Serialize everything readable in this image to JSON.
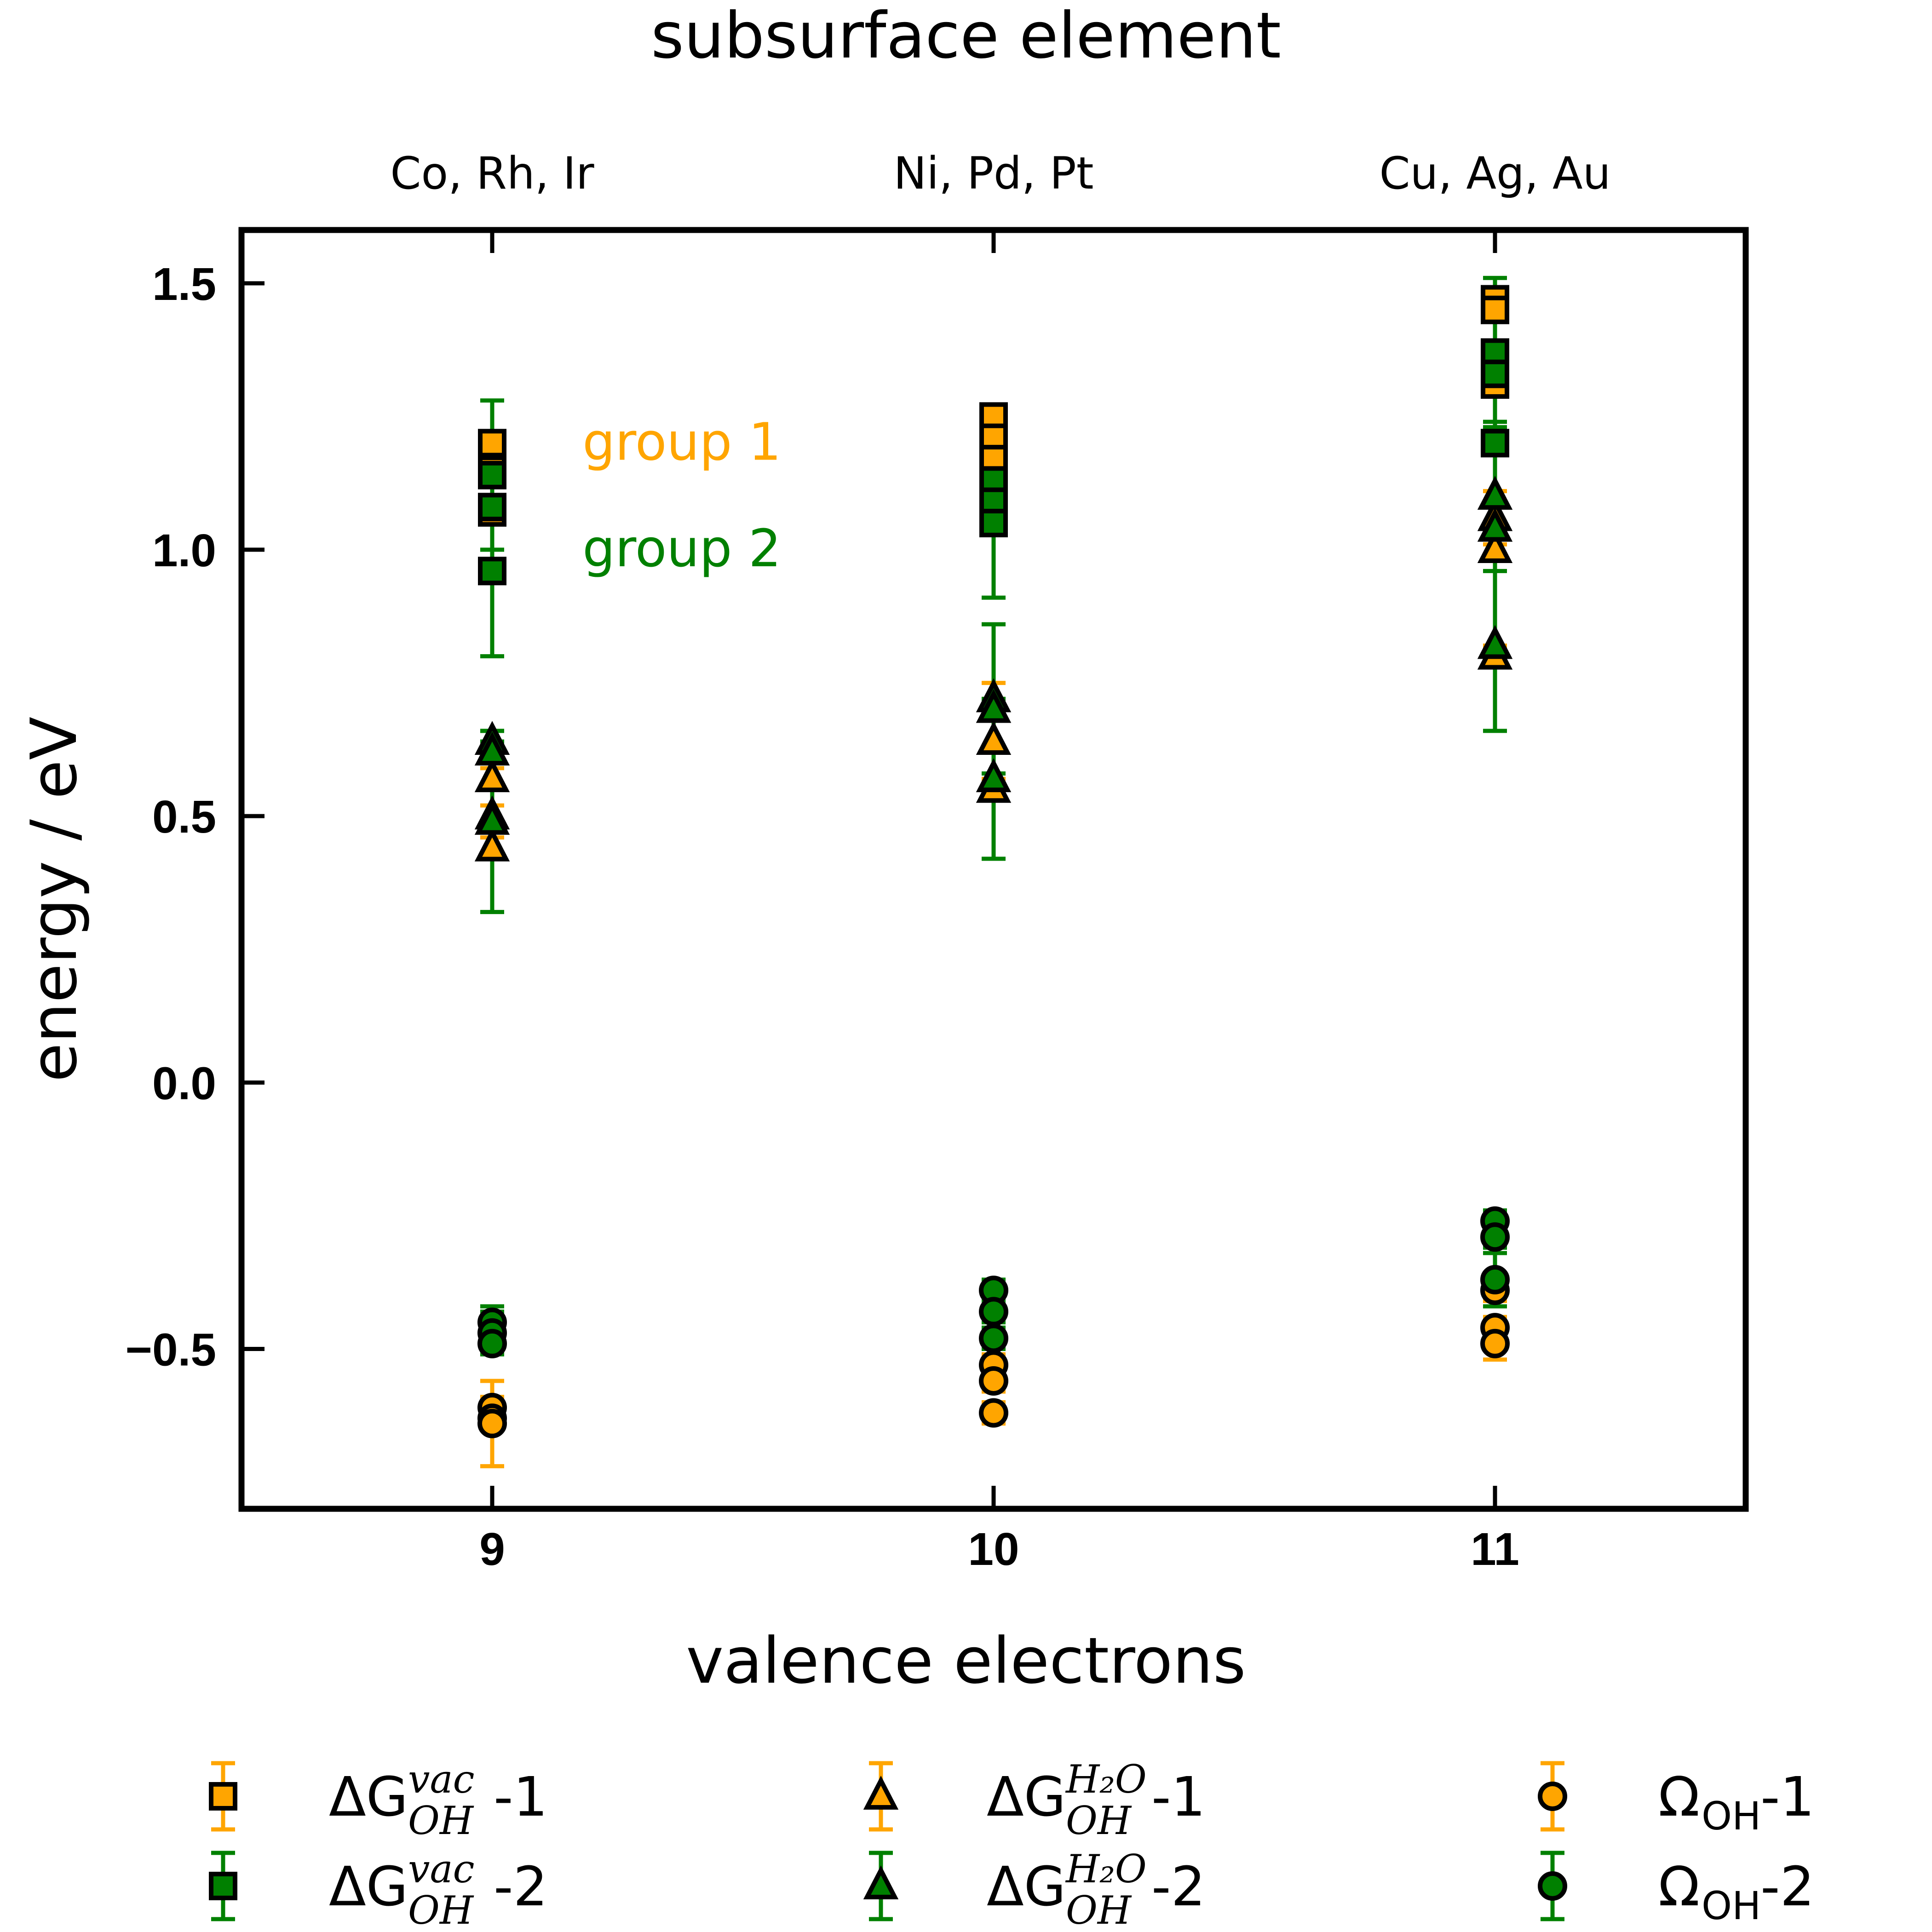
{
  "chart_data": {
    "type": "scatter",
    "title": "subsurface element",
    "xlabel": "valence electrons",
    "ylabel": "energy / eV",
    "xlim": [
      8.5,
      11.5
    ],
    "ylim": [
      -0.8,
      1.6
    ],
    "xticks": [
      9,
      10,
      11
    ],
    "xtick_labels": [
      "9",
      "10",
      "11"
    ],
    "yticks": [
      -0.5,
      0.0,
      0.5,
      1.0,
      1.5
    ],
    "ytick_labels": [
      "−0.5",
      "0.0",
      "0.5",
      "1.0",
      "1.5"
    ],
    "top_tick_labels": [
      "Co, Rh, Ir",
      "Ni, Pd, Pt",
      "Cu, Ag, Au"
    ],
    "annotations": [
      {
        "text": "group 1",
        "x": 9.18,
        "y": 1.2,
        "color": "#ffa500"
      },
      {
        "text": "group 2",
        "x": 9.18,
        "y": 1.0,
        "color": "#008000"
      }
    ],
    "grid": false,
    "legend_placement": "below",
    "series": [
      {
        "legend": {
          "base": "ΔG",
          "sub": "OH",
          "sup": "vac",
          "suffix": "-1"
        },
        "marker": "square",
        "color": "#ffa500",
        "points": [
          {
            "x": 9,
            "y": 1.2,
            "err": 0.02
          },
          {
            "x": 9,
            "y": 1.15,
            "err": 0.02
          },
          {
            "x": 9,
            "y": 1.07,
            "err": 0.02
          },
          {
            "x": 10,
            "y": 1.25,
            "err": 0.02
          },
          {
            "x": 10,
            "y": 1.21,
            "err": 0.02
          },
          {
            "x": 10,
            "y": 1.17,
            "err": 0.02
          },
          {
            "x": 11,
            "y": 1.47,
            "err": 0.02
          },
          {
            "x": 11,
            "y": 1.45,
            "err": 0.02
          },
          {
            "x": 11,
            "y": 1.31,
            "err": 0.02
          }
        ]
      },
      {
        "legend": {
          "base": "ΔG",
          "sub": "OH",
          "sup": "vac",
          "suffix": "-2"
        },
        "marker": "square",
        "color": "#008000",
        "points": [
          {
            "x": 9,
            "y": 1.14,
            "err": 0.14
          },
          {
            "x": 9,
            "y": 1.08,
            "err": 0.02
          },
          {
            "x": 9,
            "y": 0.96,
            "err": 0.16
          },
          {
            "x": 10,
            "y": 1.13,
            "err": 0.02
          },
          {
            "x": 10,
            "y": 1.09,
            "err": 0.02
          },
          {
            "x": 10,
            "y": 1.05,
            "err": 0.14
          },
          {
            "x": 11,
            "y": 1.37,
            "err": 0.14
          },
          {
            "x": 11,
            "y": 1.33,
            "err": 0.02
          },
          {
            "x": 11,
            "y": 1.2,
            "err": 0.02
          }
        ]
      },
      {
        "legend": {
          "base": "ΔG",
          "sub": "OH",
          "sup": "H₂O",
          "suffix": "-1"
        },
        "marker": "triangle",
        "color": "#ffa500",
        "points": [
          {
            "x": 9,
            "y": 0.57,
            "err": 0.02
          },
          {
            "x": 9,
            "y": 0.44,
            "err": 0.02
          },
          {
            "x": 9,
            "y": 0.5,
            "err": 0.02
          },
          {
            "x": 10,
            "y": 0.64,
            "err": 0.11
          },
          {
            "x": 10,
            "y": 0.55,
            "err": 0.02
          },
          {
            "x": 10,
            "y": 0.7,
            "err": 0.02
          },
          {
            "x": 11,
            "y": 1.0,
            "err": 0.02
          },
          {
            "x": 11,
            "y": 1.06,
            "err": 0.05
          },
          {
            "x": 11,
            "y": 0.8,
            "err": 0.02
          }
        ]
      },
      {
        "legend": {
          "base": "ΔG",
          "sub": "OH",
          "sup": "H₂O",
          "suffix": "-2"
        },
        "marker": "triangle",
        "color": "#008000",
        "points": [
          {
            "x": 9,
            "y": 0.64,
            "err": 0.02
          },
          {
            "x": 9,
            "y": 0.62,
            "err": 0.02
          },
          {
            "x": 9,
            "y": 0.49,
            "err": 0.17
          },
          {
            "x": 10,
            "y": 0.72,
            "err": 0.14
          },
          {
            "x": 10,
            "y": 0.7,
            "err": 0.02
          },
          {
            "x": 10,
            "y": 0.57,
            "err": 0.15
          },
          {
            "x": 11,
            "y": 1.1,
            "err": 0.14
          },
          {
            "x": 11,
            "y": 1.04,
            "err": 0.05
          },
          {
            "x": 11,
            "y": 0.82,
            "err": 0.16
          }
        ]
      },
      {
        "legend": {
          "base": "Ω",
          "sub": "OH",
          "sup": "",
          "suffix": "-1"
        },
        "marker": "circle",
        "color": "#ffa500",
        "points": [
          {
            "x": 9,
            "y": -0.61,
            "err": 0.02
          },
          {
            "x": 9,
            "y": -0.63,
            "err": 0.02
          },
          {
            "x": 9,
            "y": -0.64,
            "err": 0.08
          },
          {
            "x": 10,
            "y": -0.53,
            "err": 0.02
          },
          {
            "x": 10,
            "y": -0.56,
            "err": 0.02
          },
          {
            "x": 10,
            "y": -0.62,
            "err": 0.02
          },
          {
            "x": 11,
            "y": -0.39,
            "err": 0.02
          },
          {
            "x": 11,
            "y": -0.46,
            "err": 0.02
          },
          {
            "x": 11,
            "y": -0.49,
            "err": 0.03
          }
        ]
      },
      {
        "legend": {
          "base": "Ω",
          "sub": "OH",
          "sup": "",
          "suffix": "-2"
        },
        "marker": "circle",
        "color": "#008000",
        "points": [
          {
            "x": 9,
            "y": -0.45,
            "err": 0.03
          },
          {
            "x": 9,
            "y": -0.47,
            "err": 0.04
          },
          {
            "x": 9,
            "y": -0.49,
            "err": 0.02
          },
          {
            "x": 10,
            "y": -0.39,
            "err": 0.02
          },
          {
            "x": 10,
            "y": -0.43,
            "err": 0.02
          },
          {
            "x": 10,
            "y": -0.48,
            "err": 0.02
          },
          {
            "x": 11,
            "y": -0.26,
            "err": 0.02
          },
          {
            "x": 11,
            "y": -0.29,
            "err": 0.02
          },
          {
            "x": 11,
            "y": -0.37,
            "err": 0.05
          }
        ]
      }
    ]
  }
}
